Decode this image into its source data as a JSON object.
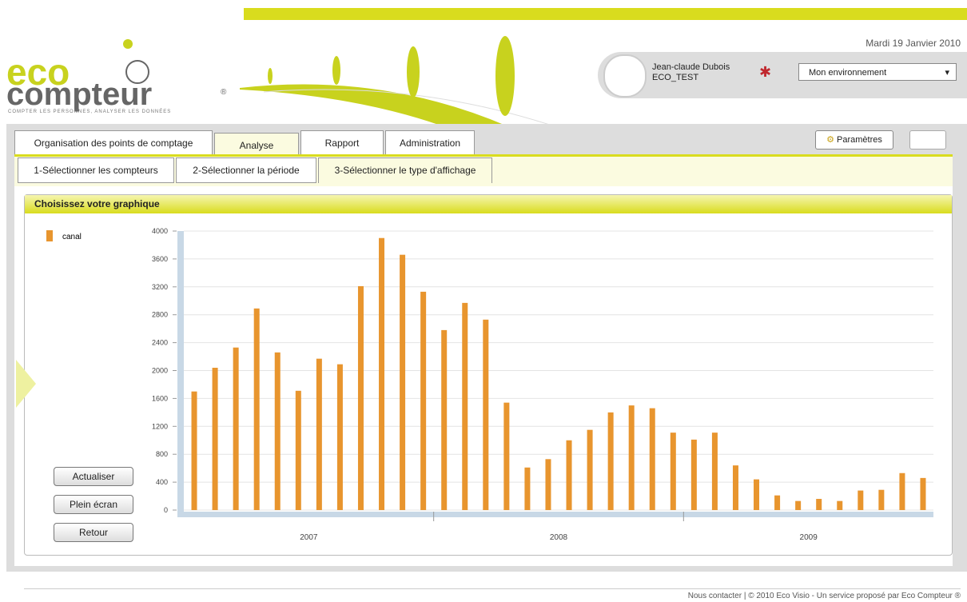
{
  "header": {
    "logo_top": "eco",
    "logo_bottom": "compteur",
    "logo_mark": "®",
    "tagline": "COMPTER LES PERSONNES, ANALYSER LES DONNÉES",
    "date": "Mardi 19 Janvier 2010",
    "user_name": "Jean-claude Dubois",
    "user_account": "ECO_TEST",
    "environment": "Mon environnement"
  },
  "tabs": [
    "Organisation des points de comptage",
    "Analyse",
    "Rapport",
    "Administration"
  ],
  "settings": "Paramètres",
  "subtabs": [
    "1-Sélectionner les compteurs",
    "2-Sélectionner la période",
    "3-Sélectionner le type d'affichage"
  ],
  "panel": {
    "title": "Choisissez votre graphique",
    "buttons": [
      "Actualiser",
      "Plein écran",
      "Retour"
    ]
  },
  "chart_data": {
    "type": "bar",
    "categories": [
      null,
      null,
      null,
      null,
      null,
      null,
      null,
      null,
      null,
      null,
      null,
      null,
      null,
      null,
      null,
      null,
      null,
      null,
      null,
      null,
      null,
      null,
      null,
      null,
      null,
      null,
      null,
      null,
      null,
      null,
      null,
      null,
      null,
      null,
      null,
      null
    ],
    "x_labels": [
      "2007",
      "2008",
      "2009"
    ],
    "series": [
      {
        "name": "canal",
        "color": "#e8952e",
        "values": [
          1700,
          2040,
          2330,
          2890,
          2260,
          1710,
          2170,
          2090,
          3210,
          3900,
          3660,
          3130,
          2580,
          2970,
          2730,
          1540,
          610,
          730,
          1000,
          1150,
          1400,
          1500,
          1460,
          1110,
          1010,
          1110,
          640,
          440,
          210,
          130,
          160,
          130,
          280,
          290,
          530,
          460
        ]
      }
    ],
    "ylim": [
      0,
      4000
    ],
    "yticks": [
      0,
      400,
      800,
      1200,
      1600,
      2000,
      2400,
      2800,
      3200,
      3600,
      4000
    ],
    "grid": true
  },
  "footer": {
    "contact": "Nous contacter",
    "separator": "|",
    "copyright": "© 2010 Eco Visio - Un service proposé par Eco Compteur ®"
  }
}
